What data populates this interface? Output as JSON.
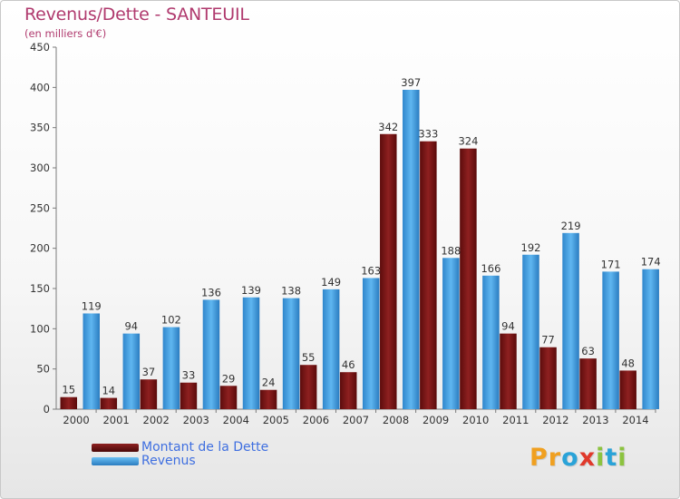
{
  "header": {
    "title": "Revenus/Dette - SANTEUIL",
    "subtitle": "(en milliers d'€)"
  },
  "legend": [
    {
      "label": "Montant de la Dette",
      "color": "#7a1212"
    },
    {
      "label": "Revenus",
      "color": "#3d9be0"
    }
  ],
  "logo": {
    "letters": [
      "P",
      "r",
      "o",
      "x",
      "i",
      "t",
      "i"
    ],
    "colors": [
      "#f0a020",
      "#f0a020",
      "#2aa3d8",
      "#e0392b",
      "#8cc33f",
      "#2aa3d8",
      "#8cc33f"
    ]
  },
  "chart_data": {
    "type": "bar",
    "title": "Revenus/Dette - SANTEUIL",
    "subtitle": "(en milliers d'€)",
    "categories": [
      "2000",
      "2001",
      "2002",
      "2003",
      "2004",
      "2005",
      "2006",
      "2007",
      "2008",
      "2009",
      "2010",
      "2011",
      "2012",
      "2013",
      "2014"
    ],
    "series": [
      {
        "name": "Montant de la Dette",
        "color": "#7a1212",
        "values": [
          15,
          14,
          37,
          33,
          29,
          24,
          55,
          46,
          342,
          333,
          324,
          94,
          77,
          63,
          48
        ]
      },
      {
        "name": "Revenus",
        "color": "#3d9be0",
        "values": [
          119,
          94,
          102,
          136,
          139,
          138,
          149,
          163,
          397,
          188,
          166,
          192,
          219,
          171,
          174
        ]
      }
    ],
    "ylim": [
      0,
      450
    ],
    "yticks": [
      0,
      50,
      100,
      150,
      200,
      250,
      300,
      350,
      400,
      450
    ],
    "grid": false,
    "legend_position": "bottom-left"
  }
}
